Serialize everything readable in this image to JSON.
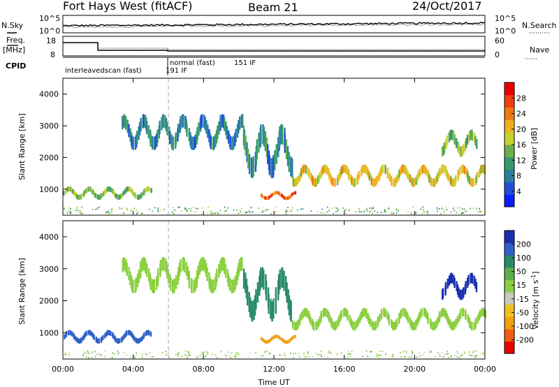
{
  "header": {
    "radar_title": "Fort Hays West (fitACF)",
    "beam": "Beam 21",
    "date": "24/Oct/2017"
  },
  "top_strip": {
    "nsky_label": "N.Sky",
    "nsearch_label": "N.Search",
    "freq_label": "Freq.",
    "freq_unit": "[MHz]",
    "nave_label": "Nave",
    "cpid_label": "CPID",
    "noise_left_ticks": [
      "10^5",
      "10^0"
    ],
    "noise_right_ticks": [
      "10^5",
      "10^0"
    ],
    "freq_ticks": [
      "18",
      "8"
    ],
    "nave_ticks": [
      "60",
      "0"
    ],
    "cpid_segments": [
      {
        "label": "interleavedscan (fast)",
        "start_hour": 0,
        "end_hour": 6.0
      },
      {
        "label": "191 IF",
        "start_hour": 6.0,
        "end_hour": 6.0
      },
      {
        "label": "normal (fast)",
        "start_hour": 6.0,
        "end_hour": 24
      },
      {
        "label": "151 IF",
        "start_hour": 6.0,
        "end_hour": 24
      }
    ]
  },
  "chart_data": [
    {
      "type": "heatmap",
      "panel": "power",
      "ylabel": "Slant Range [km]",
      "ylim": [
        180,
        4500
      ],
      "yticks": [
        "1000",
        "2000",
        "3000",
        "4000"
      ],
      "xlim_hours": [
        0,
        24
      ],
      "xticks": [
        "00:00",
        "04:00",
        "08:00",
        "12:00",
        "16:00",
        "20:00",
        "00:00"
      ],
      "colorbar_label": "Power [dB]",
      "colorbar_ticks": [
        "4",
        "8",
        "12",
        "16",
        "20",
        "24",
        "28"
      ],
      "colorbar_colors": [
        "#0a1eff",
        "#2050d8",
        "#2a7fa0",
        "#3a9a6a",
        "#6ab04c",
        "#c8d030",
        "#f0b020",
        "#f07a10",
        "#f04010",
        "#e80000"
      ],
      "echo_regions": [
        {
          "name": "near-range band",
          "t_start": 0.0,
          "t_end": 5.0,
          "range_km": [
            650,
            1100
          ],
          "value": 16
        },
        {
          "name": "far arc",
          "t_start": 3.3,
          "t_end": 10.2,
          "range_km": [
            2200,
            3400
          ],
          "value": 10
        },
        {
          "name": "descending branch",
          "t_start": 10.2,
          "t_end": 13.0,
          "range_km": [
            1300,
            3100
          ],
          "value": 11
        },
        {
          "name": "midday patch",
          "t_start": 11.2,
          "t_end": 13.2,
          "range_km": [
            650,
            950
          ],
          "value": 26
        },
        {
          "name": "afternoon band",
          "t_start": 13.0,
          "t_end": 24.0,
          "range_km": [
            1050,
            1800
          ],
          "value": 20
        },
        {
          "name": "late scatter",
          "t_start": 21.5,
          "t_end": 23.5,
          "range_km": [
            2000,
            2900
          ],
          "value": 16
        }
      ]
    },
    {
      "type": "heatmap",
      "panel": "velocity",
      "ylabel": "Slant Range [km]",
      "ylim": [
        180,
        4500
      ],
      "yticks": [
        "1000",
        "2000",
        "3000",
        "4000"
      ],
      "xlim_hours": [
        0,
        24
      ],
      "xticks": [
        "00:00",
        "04:00",
        "08:00",
        "12:00",
        "16:00",
        "20:00",
        "00:00"
      ],
      "xlabel": "Time UT",
      "colorbar_label": "Velocity [m s",
      "colorbar_label_exp": "-1",
      "colorbar_label_end": "]",
      "colorbar_ticks": [
        "200",
        "100",
        "50",
        "15",
        "-15",
        "-50",
        "-100",
        "-200"
      ],
      "colorbar_colors": [
        "#1830b0",
        "#3060c8",
        "#2a8a6a",
        "#5ab04a",
        "#8ad040",
        "#c8c8c0",
        "#f0c020",
        "#f0a010",
        "#f06010",
        "#e80000"
      ],
      "echo_regions": [
        {
          "name": "near-range band",
          "t_start": 0.0,
          "t_end": 5.0,
          "range_km": [
            650,
            1100
          ],
          "value": 70
        },
        {
          "name": "far arc",
          "t_start": 3.3,
          "t_end": 10.2,
          "range_km": [
            2200,
            3400
          ],
          "value": 0
        },
        {
          "name": "descending branch",
          "t_start": 10.2,
          "t_end": 13.0,
          "range_km": [
            1300,
            3100
          ],
          "value": 40
        },
        {
          "name": "midday patch",
          "t_start": 11.2,
          "t_end": 13.2,
          "range_km": [
            650,
            950
          ],
          "value": -60
        },
        {
          "name": "afternoon band",
          "t_start": 13.0,
          "t_end": 24.0,
          "range_km": [
            1050,
            1800
          ],
          "value": 0
        },
        {
          "name": "late scatter",
          "t_start": 21.5,
          "t_end": 23.5,
          "range_km": [
            2000,
            2900
          ],
          "value": 150
        }
      ]
    }
  ]
}
